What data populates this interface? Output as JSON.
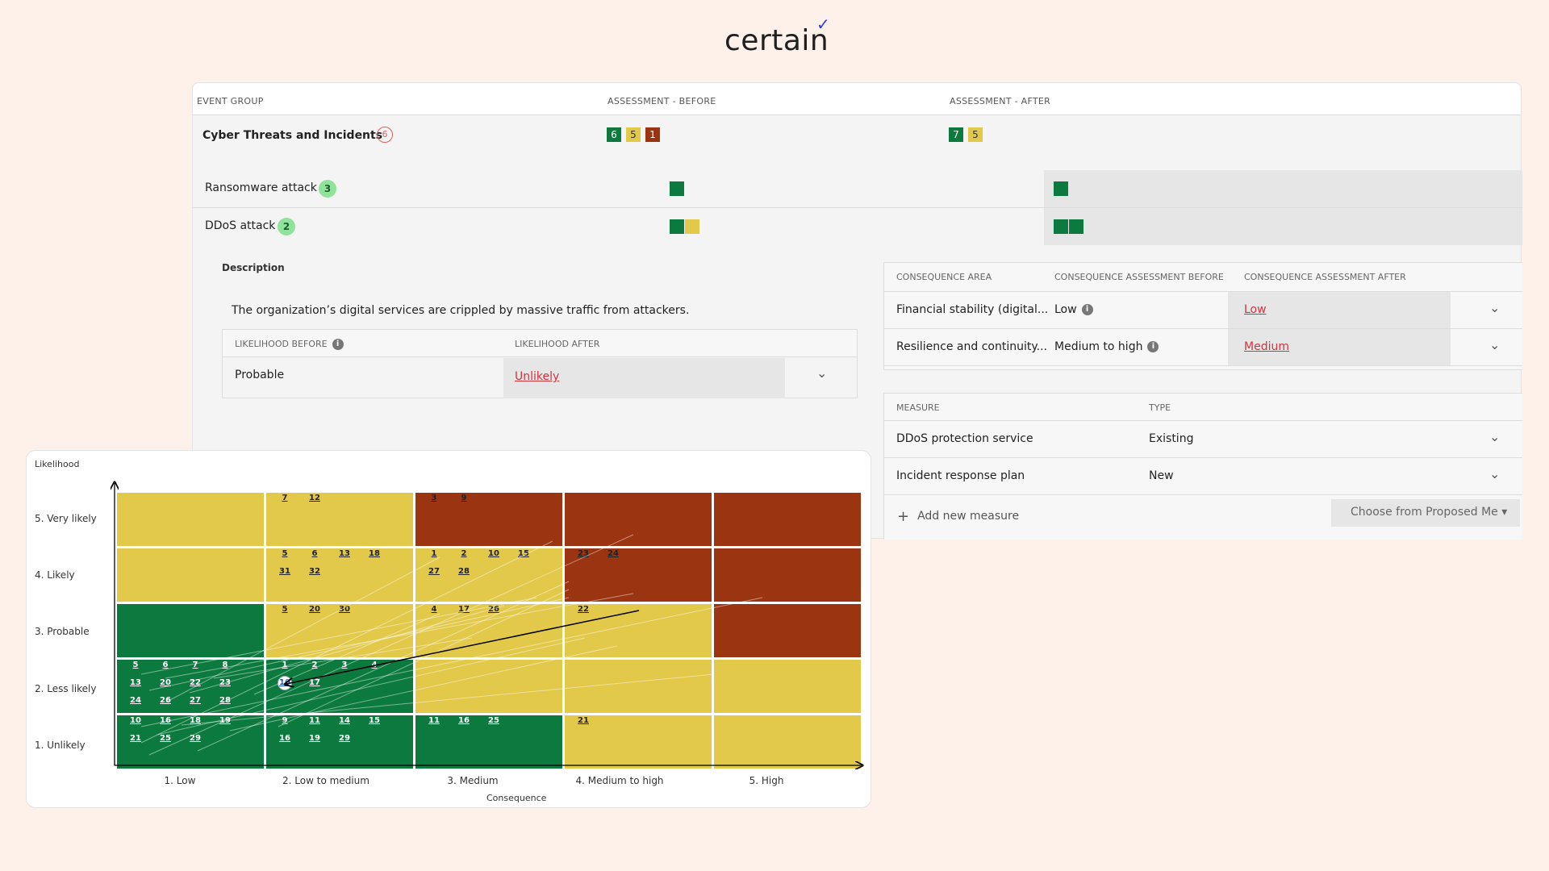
{
  "logo": {
    "text": "certain",
    "check": "✓"
  },
  "table": {
    "col_event_group": "EVENT GROUP",
    "col_before": "ASSESSMENT - BEFORE",
    "col_after": "ASSESSMENT - AFTER"
  },
  "group": {
    "title": "Cyber Threats and Incidents",
    "count": "6",
    "before_chips": [
      {
        "value": "6",
        "color": "#0c7a3e"
      },
      {
        "value": "5",
        "color": "#e2c94a"
      },
      {
        "value": "1",
        "color": "#9b3410"
      }
    ],
    "after_chips": [
      {
        "value": "7",
        "color": "#0c7a3e"
      },
      {
        "value": "5",
        "color": "#e2c94a"
      }
    ]
  },
  "events": [
    {
      "label": "Ransomware attack",
      "badge": "3",
      "before": [
        "green"
      ],
      "after": [
        "green"
      ]
    },
    {
      "label": "DDoS attack",
      "badge": "2",
      "before": [
        "green",
        "yellow"
      ],
      "after": [
        "green",
        "green"
      ]
    }
  ],
  "description": {
    "heading": "Description",
    "text": "The organization’s digital services are crippled by massive traffic from attackers."
  },
  "likelihood": {
    "before_header": "LIKELIHOOD BEFORE",
    "after_header": "LIKELIHOOD AFTER",
    "before_value": "Probable",
    "after_value": "Unlikely"
  },
  "consequence": {
    "h_area": "CONSEQUENCE AREA",
    "h_before": "CONSEQUENCE ASSESSMENT BEFORE",
    "h_after": "CONSEQUENCE ASSESSMENT AFTER",
    "rows": [
      {
        "area": "Financial stability (digital...",
        "before": "Low",
        "after": "Low"
      },
      {
        "area": "Resilience and continuity...",
        "before": "Medium to high",
        "after": "Medium"
      }
    ]
  },
  "measures": {
    "h_measure": "MEASURE",
    "h_type": "TYPE",
    "rows": [
      {
        "measure": "DDoS protection service",
        "type": "Existing"
      },
      {
        "measure": "Incident response plan",
        "type": "New"
      }
    ],
    "add_label": "Add new measure",
    "choose_label": "Choose from Proposed Me"
  },
  "matrix": {
    "y_label": "Likelihood",
    "x_label": "Consequence",
    "rows": [
      "5. Very likely",
      "4. Likely",
      "3. Probable",
      "2. Less likely",
      "1. Unlikely"
    ],
    "cols": [
      "1. Low",
      "2. Low to medium",
      "3. Medium",
      "4. Medium to high",
      "5. High"
    ],
    "colors": [
      [
        "yellow",
        "yellow",
        "red",
        "red",
        "red"
      ],
      [
        "yellow",
        "yellow",
        "yellow",
        "red",
        "red"
      ],
      [
        "green",
        "yellow",
        "yellow",
        "yellow",
        "red"
      ],
      [
        "green",
        "green",
        "yellow",
        "yellow",
        "yellow"
      ],
      [
        "green",
        "green",
        "green",
        "yellow",
        "yellow"
      ]
    ],
    "cell_numbers": {
      "5-2": [
        "7",
        "12"
      ],
      "5-3": [
        "3",
        "9"
      ],
      "4-2": [
        "5",
        "6",
        "13",
        "18",
        "31",
        "32"
      ],
      "4-3": [
        "1",
        "2",
        "10",
        "15",
        "27",
        "28"
      ],
      "4-4": [
        "23",
        "24"
      ],
      "3-2": [
        "5",
        "20",
        "30"
      ],
      "3-3": [
        "4",
        "17",
        "26"
      ],
      "3-4": [
        "22"
      ],
      "2-1": [
        "5",
        "6",
        "7",
        "8",
        "13",
        "20",
        "22",
        "23",
        "24",
        "26",
        "27",
        "28"
      ],
      "2-2": [
        "1",
        "2",
        "3",
        "4",
        "10",
        "17"
      ],
      "1-1": [
        "10",
        "16",
        "18",
        "19",
        "21",
        "25",
        "29"
      ],
      "1-2": [
        "9",
        "11",
        "14",
        "15",
        "16",
        "19",
        "29"
      ],
      "1-3": [
        "11",
        "16",
        "25"
      ],
      "1-4": [
        "21"
      ]
    },
    "highlight": {
      "number": "10",
      "from": [
        3,
        4
      ],
      "to": [
        2,
        2
      ]
    }
  }
}
